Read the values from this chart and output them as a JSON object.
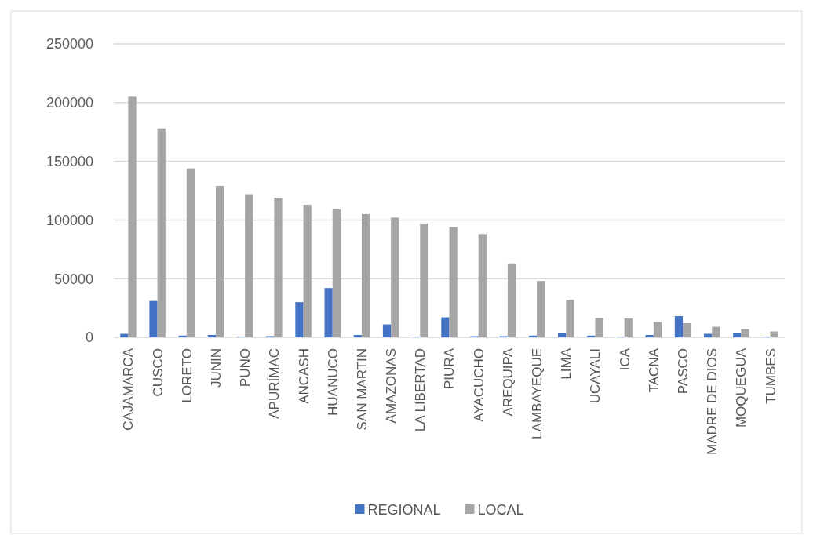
{
  "chart_data": {
    "type": "bar",
    "categories": [
      "CAJAMARCA",
      "CUSCO",
      "LORETO",
      "JUNIN",
      "PUNO",
      "APURÍMAC",
      "ANCASH",
      "HUANUCO",
      "SAN MARTIN",
      "AMAZONAS",
      "LA LIBERTAD",
      "PIURA",
      "AYACUCHO",
      "AREQUIPA",
      "LAMBAYEQUE",
      "LIMA",
      "UCAYALI",
      "ICA",
      "TACNA",
      "PASCO",
      "MADRE DE DIOS",
      "MOQUEGUA",
      "TUMBES"
    ],
    "series": [
      {
        "name": "REGIONAL",
        "color": "#4472c4",
        "values": [
          3000,
          31000,
          1500,
          2000,
          500,
          1000,
          30000,
          42000,
          2000,
          11000,
          500,
          17000,
          1000,
          1000,
          1500,
          4000,
          1500,
          500,
          2000,
          18000,
          3000,
          4000,
          500
        ]
      },
      {
        "name": "LOCAL",
        "color": "#a5a5a5",
        "values": [
          205000,
          178000,
          144000,
          129000,
          122000,
          119000,
          113000,
          109000,
          105000,
          102000,
          97000,
          94000,
          88000,
          63000,
          48000,
          32000,
          16500,
          16000,
          13000,
          12000,
          9000,
          7000,
          5000
        ]
      }
    ],
    "ylim": [
      0,
      250000
    ],
    "yticks": [
      0,
      50000,
      100000,
      150000,
      200000,
      250000
    ],
    "grid": "y",
    "legend": "bottom"
  }
}
